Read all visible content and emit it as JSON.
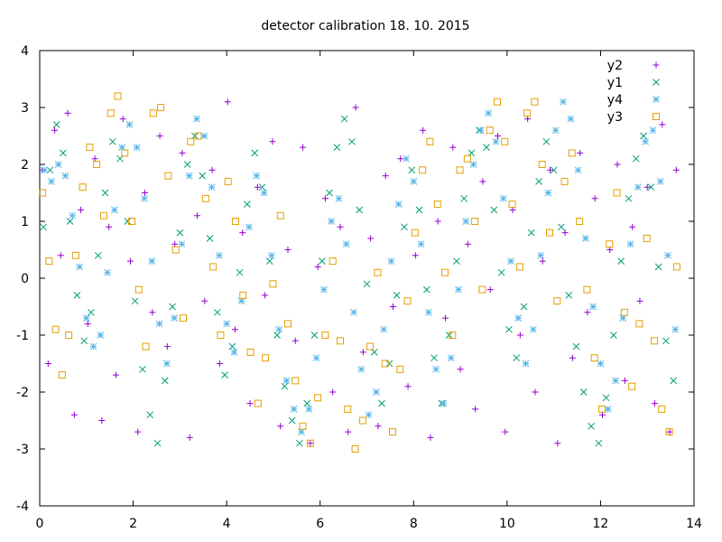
{
  "chart_data": {
    "type": "scatter",
    "title": "detector calibration 18. 10. 2015",
    "xlabel": "",
    "ylabel": "",
    "xlim": [
      0,
      14
    ],
    "ylim": [
      -4,
      4
    ],
    "x_ticks": [
      0,
      2,
      4,
      6,
      8,
      10,
      12,
      14
    ],
    "y_ticks": [
      -4,
      -3,
      -2,
      -1,
      0,
      1,
      2,
      3,
      4
    ],
    "x_tick_labels": [
      "0",
      "2",
      "4",
      "6",
      "8",
      "10",
      "12",
      "14"
    ],
    "y_tick_labels": [
      "-4",
      "-3",
      "-2",
      "-1",
      "0",
      "1",
      "2",
      "3",
      "4"
    ],
    "grid": false,
    "legend_position": "top-right",
    "series": [
      {
        "name": "y2",
        "marker": "plus",
        "color": "#9400d3",
        "x": [
          0.05,
          0.18,
          0.32,
          0.45,
          0.6,
          0.74,
          0.88,
          1.03,
          1.18,
          1.33,
          1.48,
          1.63,
          1.78,
          1.94,
          2.1,
          2.25,
          2.41,
          2.57,
          2.73,
          2.89,
          3.05,
          3.21,
          3.37,
          3.53,
          3.69,
          3.85,
          4.02,
          4.18,
          4.34,
          4.5,
          4.66,
          4.82,
          4.98,
          5.15,
          5.31,
          5.47,
          5.63,
          5.79,
          5.95,
          6.11,
          6.27,
          6.43,
          6.6,
          6.76,
          6.92,
          7.08,
          7.24,
          7.4,
          7.56,
          7.72,
          7.88,
          8.04,
          8.2,
          8.36,
          8.52,
          8.68,
          8.84,
          9.0,
          9.16,
          9.32,
          9.48,
          9.64,
          9.8,
          9.96,
          10.12,
          10.28,
          10.44,
          10.6,
          10.76,
          10.92,
          11.08,
          11.24,
          11.4,
          11.56,
          11.72,
          11.88,
          12.04,
          12.2,
          12.36,
          12.52,
          12.68,
          12.84,
          13.0,
          13.16,
          13.32,
          13.48,
          13.62
        ],
        "y": [
          1.9,
          -1.5,
          2.6,
          0.4,
          2.9,
          -2.4,
          1.2,
          -0.8,
          2.1,
          -2.5,
          0.9,
          -1.7,
          2.8,
          0.3,
          -2.7,
          1.5,
          -0.6,
          2.5,
          -1.2,
          0.6,
          2.2,
          -2.8,
          1.1,
          -0.4,
          1.9,
          -1.5,
          3.1,
          -0.9,
          0.8,
          -2.2,
          1.6,
          -0.3,
          2.4,
          -2.6,
          0.5,
          -1.1,
          2.3,
          -2.9,
          0.2,
          1.4,
          -2.0,
          0.9,
          -2.7,
          3.0,
          -1.3,
          0.7,
          -2.6,
          1.8,
          -0.5,
          2.1,
          -1.9,
          0.4,
          2.6,
          -2.8,
          1.0,
          -0.7,
          2.3,
          -1.6,
          0.6,
          -2.3,
          1.7,
          -0.2,
          2.5,
          -2.7,
          1.2,
          -1.0,
          2.8,
          -2.0,
          0.3,
          1.9,
          -2.9,
          0.8,
          -1.4,
          2.2,
          -0.6,
          1.4,
          -2.4,
          0.5,
          2.0,
          -1.8,
          0.9,
          -0.4,
          1.6,
          -2.2,
          2.7,
          -2.7,
          1.9
        ]
      },
      {
        "name": "y1",
        "marker": "x",
        "color": "#009e73",
        "x": [
          0.08,
          0.22,
          0.36,
          0.5,
          0.65,
          0.8,
          0.95,
          1.1,
          1.25,
          1.4,
          1.56,
          1.72,
          1.88,
          2.04,
          2.2,
          2.36,
          2.52,
          2.68,
          2.84,
          3.0,
          3.16,
          3.32,
          3.48,
          3.64,
          3.8,
          3.96,
          4.12,
          4.28,
          4.44,
          4.6,
          4.76,
          4.92,
          5.08,
          5.24,
          5.4,
          5.56,
          5.72,
          5.88,
          6.04,
          6.2,
          6.36,
          6.52,
          6.68,
          6.84,
          7.0,
          7.16,
          7.32,
          7.48,
          7.64,
          7.8,
          7.96,
          8.12,
          8.28,
          8.44,
          8.6,
          8.76,
          8.92,
          9.08,
          9.24,
          9.4,
          9.56,
          9.72,
          9.88,
          10.04,
          10.2,
          10.36,
          10.52,
          10.68,
          10.84,
          11.0,
          11.16,
          11.32,
          11.48,
          11.64,
          11.8,
          11.96,
          12.12,
          12.28,
          12.44,
          12.6,
          12.76,
          12.92,
          13.08,
          13.24,
          13.4,
          13.56
        ],
        "y": [
          0.9,
          1.9,
          2.7,
          2.2,
          1.0,
          -0.3,
          -1.1,
          -0.6,
          0.4,
          1.5,
          2.4,
          2.1,
          1.0,
          -0.4,
          -1.6,
          -2.4,
          -2.9,
          -1.8,
          -0.5,
          0.8,
          2.0,
          2.5,
          1.8,
          0.7,
          -0.6,
          -1.7,
          -1.2,
          0.1,
          1.3,
          2.2,
          1.6,
          0.3,
          -1.0,
          -1.9,
          -2.5,
          -2.9,
          -2.2,
          -1.0,
          0.3,
          1.5,
          2.3,
          2.8,
          2.4,
          1.2,
          -0.1,
          -1.3,
          -2.2,
          -1.5,
          -0.3,
          0.9,
          1.9,
          1.2,
          -0.2,
          -1.4,
          -2.2,
          -1.0,
          0.3,
          1.4,
          2.2,
          2.6,
          2.3,
          1.2,
          0.1,
          -0.9,
          -1.4,
          -0.5,
          0.8,
          1.7,
          2.4,
          1.9,
          0.9,
          -0.3,
          -1.2,
          -2.0,
          -2.6,
          -2.9,
          -2.1,
          -1.0,
          0.3,
          1.4,
          2.1,
          2.5,
          1.6,
          0.2,
          -1.1,
          -1.8
        ]
      },
      {
        "name": "y4",
        "marker": "star",
        "color": "#56b4e9",
        "x": [
          0.1,
          0.25,
          0.4,
          0.55,
          0.7,
          0.85,
          1.0,
          1.15,
          1.3,
          1.45,
          1.6,
          1.76,
          1.92,
          2.08,
          2.24,
          2.4,
          2.56,
          2.72,
          2.88,
          3.04,
          3.2,
          3.36,
          3.52,
          3.68,
          3.84,
          4.0,
          4.16,
          4.32,
          4.48,
          4.64,
          4.8,
          4.96,
          5.12,
          5.28,
          5.44,
          5.6,
          5.76,
          5.92,
          6.08,
          6.24,
          6.4,
          6.56,
          6.72,
          6.88,
          7.04,
          7.2,
          7.36,
          7.52,
          7.68,
          7.84,
          8.0,
          8.16,
          8.32,
          8.48,
          8.64,
          8.8,
          8.96,
          9.12,
          9.28,
          9.44,
          9.6,
          9.76,
          9.92,
          10.08,
          10.24,
          10.4,
          10.56,
          10.72,
          10.88,
          11.04,
          11.2,
          11.36,
          11.52,
          11.68,
          11.84,
          12.0,
          12.16,
          12.32,
          12.48,
          12.64,
          12.8,
          12.96,
          13.12,
          13.28,
          13.44,
          13.6
        ],
        "y": [
          1.9,
          1.7,
          2.0,
          1.8,
          1.1,
          0.2,
          -0.7,
          -1.2,
          -1.0,
          0.1,
          1.2,
          2.3,
          2.7,
          2.3,
          1.4,
          0.3,
          -0.8,
          -1.5,
          -0.7,
          0.6,
          1.8,
          2.8,
          2.5,
          1.6,
          0.4,
          -0.8,
          -1.3,
          -0.4,
          0.9,
          1.8,
          1.5,
          0.4,
          -0.9,
          -1.8,
          -2.3,
          -2.7,
          -2.3,
          -1.4,
          -0.2,
          1.0,
          1.4,
          0.6,
          -0.6,
          -1.6,
          -2.4,
          -2.0,
          -0.9,
          0.3,
          1.3,
          2.1,
          1.7,
          0.6,
          -0.6,
          -1.6,
          -2.2,
          -1.4,
          -0.2,
          1.0,
          2.0,
          2.6,
          2.9,
          2.4,
          1.4,
          0.3,
          -0.7,
          -1.5,
          -0.9,
          0.4,
          1.5,
          2.6,
          3.1,
          2.8,
          1.9,
          0.7,
          -0.5,
          -1.5,
          -2.3,
          -1.8,
          -0.7,
          0.6,
          1.6,
          2.4,
          2.6,
          1.7,
          0.4,
          -0.9
        ]
      },
      {
        "name": "y3",
        "marker": "square",
        "color": "#e69f00",
        "x": [
          0.06,
          0.2,
          0.34,
          0.48,
          0.62,
          0.77,
          0.92,
          1.07,
          1.22,
          1.37,
          1.52,
          1.67,
          1.82,
          1.97,
          2.12,
          2.27,
          2.43,
          2.59,
          2.75,
          2.91,
          3.07,
          3.23,
          3.39,
          3.55,
          3.71,
          3.87,
          4.03,
          4.19,
          4.35,
          4.51,
          4.67,
          4.83,
          4.99,
          5.15,
          5.31,
          5.47,
          5.63,
          5.79,
          5.95,
          6.11,
          6.27,
          6.43,
          6.59,
          6.75,
          6.91,
          7.07,
          7.23,
          7.39,
          7.55,
          7.71,
          7.87,
          8.03,
          8.19,
          8.35,
          8.51,
          8.67,
          8.83,
          8.99,
          9.15,
          9.31,
          9.47,
          9.63,
          9.79,
          9.95,
          10.11,
          10.27,
          10.43,
          10.59,
          10.75,
          10.91,
          11.07,
          11.23,
          11.39,
          11.55,
          11.71,
          11.87,
          12.03,
          12.19,
          12.35,
          12.51,
          12.67,
          12.83,
          12.99,
          13.15,
          13.31,
          13.47,
          13.63
        ],
        "y": [
          1.5,
          0.3,
          -0.9,
          -1.7,
          -1.0,
          0.4,
          1.6,
          2.3,
          2.0,
          1.1,
          2.9,
          3.2,
          2.2,
          1.0,
          -0.2,
          -1.2,
          2.9,
          3.0,
          1.8,
          0.5,
          -0.7,
          2.4,
          2.5,
          1.4,
          0.2,
          -1.0,
          1.7,
          1.0,
          -0.3,
          -1.3,
          -2.2,
          -1.4,
          -0.1,
          1.1,
          -0.8,
          -1.8,
          -2.6,
          -2.9,
          -2.1,
          -1.0,
          0.3,
          -1.1,
          -2.3,
          -3.0,
          -2.5,
          -1.2,
          0.1,
          -1.5,
          -2.7,
          -1.6,
          -0.4,
          0.8,
          1.9,
          2.4,
          1.3,
          0.1,
          -1.0,
          1.9,
          2.1,
          1.0,
          -0.2,
          2.6,
          3.1,
          2.4,
          1.3,
          0.2,
          2.9,
          3.1,
          2.0,
          0.8,
          -0.4,
          1.7,
          2.2,
          1.0,
          -0.2,
          -1.4,
          -2.3,
          0.6,
          1.5,
          -0.6,
          -1.9,
          -0.8,
          0.7,
          -1.1,
          -2.3,
          -2.7,
          0.2
        ]
      }
    ]
  }
}
